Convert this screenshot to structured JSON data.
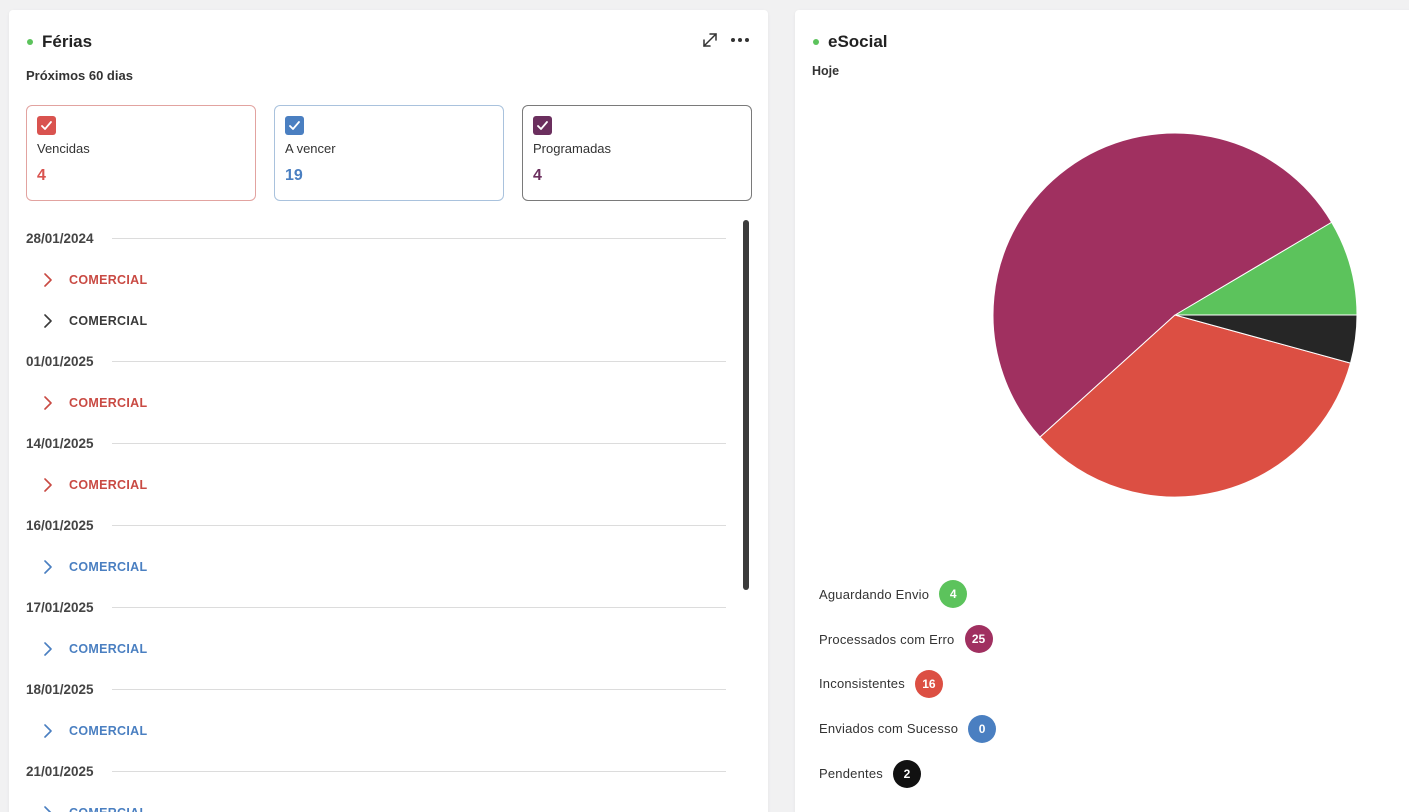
{
  "ferias": {
    "title": "Férias",
    "subtitle": "Próximos 60 dias",
    "actions": {
      "expand_icon": "expand-icon",
      "more_icon": "more-icon"
    },
    "summary": [
      {
        "label": "Vencidas",
        "value": "4",
        "color": "#d9534f"
      },
      {
        "label": "A vencer",
        "value": "19",
        "color": "#4a7fc1"
      },
      {
        "label": "Programadas",
        "value": "4",
        "color": "#6b2f5e"
      }
    ],
    "groups": [
      {
        "date": "28/01/2024",
        "items": [
          {
            "label": "COMERCIAL",
            "color": "#c94a43"
          },
          {
            "label": "COMERCIAL",
            "color": "#3a3a3a"
          }
        ]
      },
      {
        "date": "01/01/2025",
        "items": [
          {
            "label": "COMERCIAL",
            "color": "#c94a43"
          }
        ]
      },
      {
        "date": "14/01/2025",
        "items": [
          {
            "label": "COMERCIAL",
            "color": "#c94a43"
          }
        ]
      },
      {
        "date": "16/01/2025",
        "items": [
          {
            "label": "COMERCIAL",
            "color": "#4a7fc1"
          }
        ]
      },
      {
        "date": "17/01/2025",
        "items": [
          {
            "label": "COMERCIAL",
            "color": "#4a7fc1"
          }
        ]
      },
      {
        "date": "18/01/2025",
        "items": [
          {
            "label": "COMERCIAL",
            "color": "#4a7fc1"
          }
        ]
      },
      {
        "date": "21/01/2025",
        "items": [
          {
            "label": "COMERCIAL",
            "color": "#4a7fc1"
          }
        ]
      }
    ]
  },
  "esocial": {
    "title": "eSocial",
    "subtitle": "Hoje",
    "legend": [
      {
        "label": "Aguardando Envio",
        "value": "4",
        "color": "#5cc35c"
      },
      {
        "label": "Processados com Erro",
        "value": "25",
        "color": "#a03060"
      },
      {
        "label": "Inconsistentes",
        "value": "16",
        "color": "#dc4f43"
      },
      {
        "label": "Enviados com Sucesso",
        "value": "0",
        "color": "#4a7fc1"
      },
      {
        "label": "Pendentes",
        "value": "2",
        "color": "#111111"
      }
    ]
  },
  "chart_data": {
    "type": "pie",
    "categories": [
      "Aguardando Envio",
      "Processados com Erro",
      "Inconsistentes",
      "Enviados com Sucesso",
      "Pendentes"
    ],
    "values": [
      4,
      25,
      16,
      0,
      2
    ],
    "colors": [
      "#5cc35c",
      "#a03060",
      "#dc4f43",
      "#4a7fc1",
      "#262626"
    ],
    "title": "",
    "legend": "bottom-left"
  }
}
